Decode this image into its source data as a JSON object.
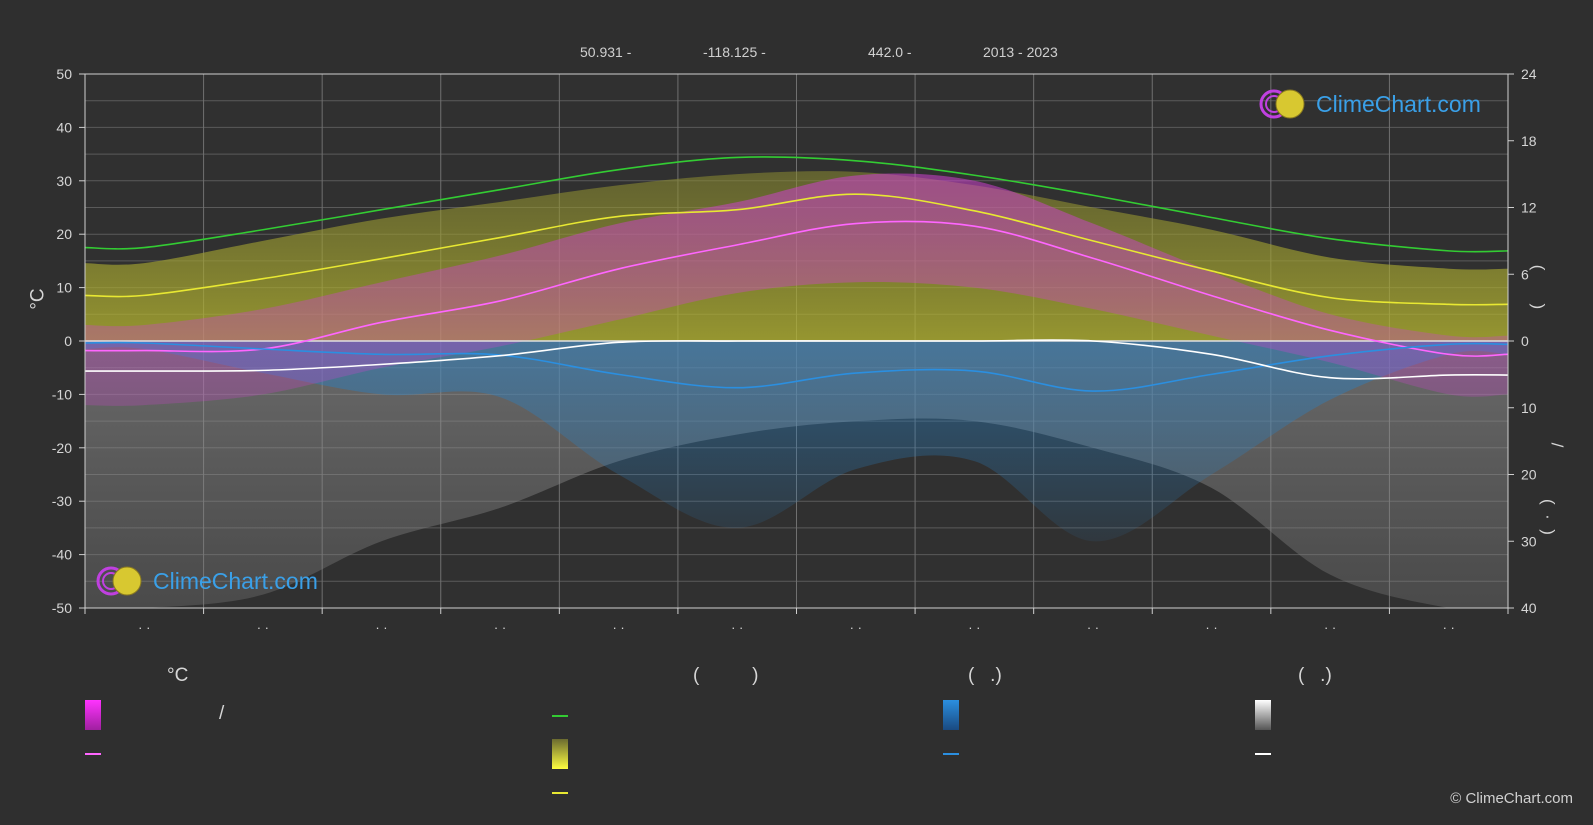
{
  "header": {
    "lat": "50.931 -",
    "lon": "-118.125 -",
    "elev": "442.0 -",
    "years": "2013 - 2023"
  },
  "left_axis_title": "°C",
  "right_axis_titles": {
    "upper": "(       )",
    "lower_a": "/",
    "lower_b": "(  ·  )"
  },
  "month_labels": [
    "· ·",
    "· ·",
    "· ·",
    "· ·",
    "· ·",
    "· ·",
    "· ·",
    "· ·",
    "· ·",
    "· ·",
    "· ·",
    "· ·"
  ],
  "logo": {
    "name": "ClimeChart.com"
  },
  "copyright": "© ClimeChart.com",
  "legend": {
    "col1": {
      "head": "°C",
      "item1": "/"
    },
    "col2": {
      "head": "(          )"
    },
    "col3": {
      "head": "(   .)"
    },
    "col4": {
      "head": "(   .)"
    }
  },
  "colors": {
    "daylight": "#33cc33",
    "sunshine": "#e8e832",
    "temp_mean": "#ff66ff",
    "rain": "#2b8fe0",
    "snow": "#ffffff",
    "temp_band": "#cc33cc",
    "sun_band": "#bdbd2e",
    "background": "#2f2f2f"
  },
  "chart_data": {
    "type": "line",
    "y_left": {
      "unit": "°C",
      "range": [
        -50,
        50
      ],
      "ticks": [
        50,
        40,
        30,
        20,
        10,
        0,
        -10,
        -20,
        -30,
        -40,
        -50
      ]
    },
    "y_right_upper": {
      "range": [
        0,
        24
      ],
      "ticks": [
        24,
        18,
        12,
        6,
        0
      ]
    },
    "y_right_lower": {
      "range": [
        0,
        40
      ],
      "ticks": [
        0,
        10,
        20,
        30,
        40
      ]
    },
    "months": 12,
    "series": [
      {
        "key": "daylight",
        "axis": "right_upper",
        "values": [
          8.4,
          10.0,
          11.8,
          13.6,
          15.4,
          16.5,
          16.2,
          14.9,
          13.1,
          11.1,
          9.2,
          8.1
        ]
      },
      {
        "key": "sunshine",
        "axis": "right_upper",
        "values": [
          4.1,
          5.6,
          7.4,
          9.3,
          11.2,
          11.8,
          13.2,
          11.7,
          9.0,
          6.3,
          3.9,
          3.3
        ]
      },
      {
        "key": "temp_mean",
        "axis": "left",
        "values": [
          -1.8,
          -1.5,
          3.5,
          7.5,
          13.5,
          18.0,
          22.0,
          21.5,
          15.5,
          8.5,
          2.0,
          -2.5
        ]
      },
      {
        "key": "rain",
        "axis": "right_lower",
        "values": [
          0.3,
          1.2,
          2.0,
          2.1,
          5.0,
          7.0,
          4.8,
          4.5,
          7.5,
          5.0,
          2.2,
          0.5
        ]
      },
      {
        "key": "snow",
        "axis": "right_lower",
        "values": [
          4.5,
          4.4,
          3.5,
          2.2,
          0.2,
          0.0,
          0.0,
          0.0,
          0.0,
          2.0,
          5.5,
          5.1
        ]
      }
    ],
    "temp_band_max": [
      3.0,
      6.0,
      11.0,
      16.0,
      22.0,
      26.0,
      31.0,
      30.0,
      22.0,
      13.0,
      5.0,
      1.0
    ],
    "temp_band_min": [
      -12.0,
      -10.0,
      -5.0,
      -1.0,
      4.0,
      9.0,
      11.0,
      10.0,
      6.0,
      1.0,
      -4.0,
      -10.0
    ],
    "sunshine_band_top": [
      7.0,
      9.0,
      11.0,
      12.5,
      14.0,
      15.0,
      15.2,
      14.0,
      12.0,
      10.0,
      7.5,
      6.5
    ],
    "snow_band_depth": [
      40.0,
      38.0,
      30.0,
      25.0,
      18.0,
      14.0,
      12.0,
      12.0,
      16.0,
      22.0,
      35.0,
      40.0
    ],
    "grid": true
  }
}
